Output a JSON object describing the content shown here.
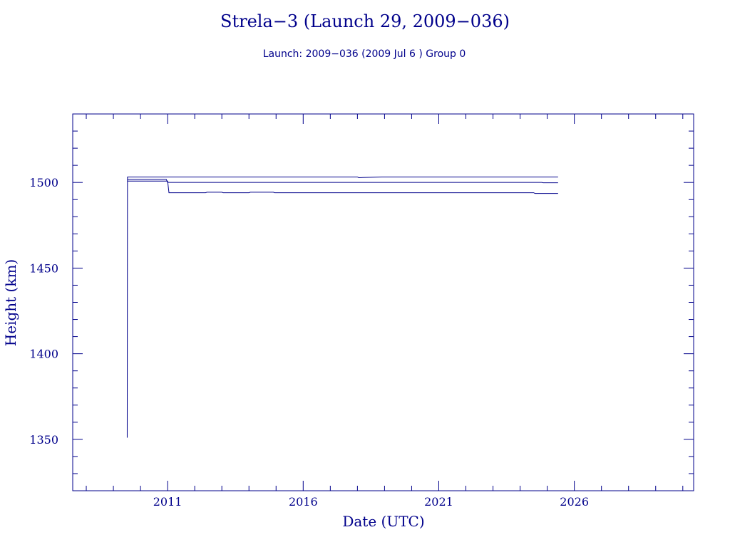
{
  "chart_data": {
    "type": "line",
    "title": "Strela−3 (Launch 29, 2009−036)",
    "subtitle": "Launch: 2009−036  (2009 Jul  6 )  Group 0",
    "xlabel": "Date (UTC)",
    "ylabel": "Height (km)",
    "xlim": [
      2007.5,
      2030.4
    ],
    "ylim": [
      1320,
      1540
    ],
    "x_ticks": [
      2011,
      2016,
      2021,
      2026
    ],
    "y_ticks": [
      1350,
      1400,
      1450,
      1500
    ],
    "grid": false,
    "colors": {
      "foreground": "#00008b",
      "background": "#ffffff"
    },
    "series": [
      {
        "x": [
          2009.51,
          2009.52,
          2009.52,
          2010.9,
          2010.92,
          2018.0,
          2018.05,
          2018.9,
          2025.4
        ],
        "y": [
          1351,
          1500,
          1503.2,
          1503.2,
          1503.2,
          1503.2,
          1502.8,
          1503.2,
          1503.2
        ]
      },
      {
        "x": [
          2009.52,
          2010.95,
          2011.0,
          2024.8,
          2024.85,
          2025.4
        ],
        "y": [
          1501.8,
          1501.8,
          1500.0,
          1500.0,
          1499.8,
          1499.8
        ]
      },
      {
        "x": [
          2009.52,
          2011.0,
          2011.05,
          2012.4,
          2012.45,
          2013.0,
          2013.05,
          2014.0,
          2014.05,
          2014.9,
          2014.95,
          2024.5,
          2024.55,
          2025.4
        ],
        "y": [
          1500.8,
          1500.8,
          1494.0,
          1494.0,
          1494.3,
          1494.3,
          1494.0,
          1494.0,
          1494.3,
          1494.3,
          1494.0,
          1494.0,
          1493.6,
          1493.6
        ]
      }
    ]
  }
}
